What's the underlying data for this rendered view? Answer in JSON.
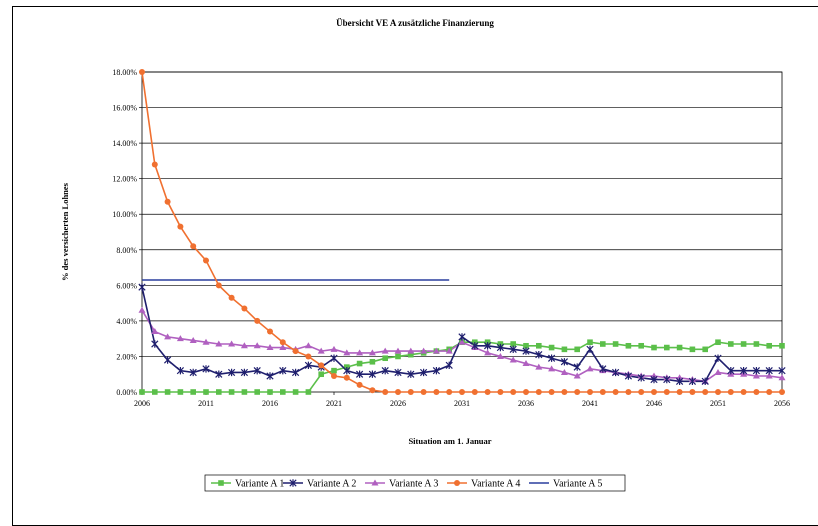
{
  "chart_data": {
    "type": "line",
    "title": "Übersicht VE A zusätzliche Finanzierung",
    "xlabel": "Situation am 1. Januar",
    "ylabel": "% des versicherten Lohnes",
    "xlim": [
      2006,
      2056
    ],
    "ylim": [
      0,
      18
    ],
    "x_ticks": [
      "2006",
      "2011",
      "2016",
      "2021",
      "2026",
      "2031",
      "2036",
      "2041",
      "2046",
      "2051",
      "2056"
    ],
    "y_ticks": [
      "0.00%",
      "2.00%",
      "4.00%",
      "6.00%",
      "8.00%",
      "10.00%",
      "12.00%",
      "14.00%",
      "16.00%",
      "18.00%"
    ],
    "grid": "horizontal",
    "legend_position": "bottom",
    "colors": {
      "Variante A 1": "#5bbf4a",
      "Variante A 2": "#1f1f6e",
      "Variante A 3": "#b060c0",
      "Variante A 4": "#f07030",
      "Variante A 5": "#2a3f9e"
    },
    "series": [
      {
        "name": "Variante A 1",
        "marker": "square",
        "x": [
          2006,
          2007,
          2008,
          2009,
          2010,
          2011,
          2012,
          2013,
          2014,
          2015,
          2016,
          2017,
          2018,
          2019,
          2020,
          2021,
          2022,
          2023,
          2024,
          2025,
          2026,
          2027,
          2028,
          2029,
          2030,
          2031,
          2032,
          2033,
          2034,
          2035,
          2036,
          2037,
          2038,
          2039,
          2040,
          2041,
          2042,
          2043,
          2044,
          2045,
          2046,
          2047,
          2048,
          2049,
          2050,
          2051,
          2052,
          2053,
          2054,
          2055,
          2056
        ],
        "values": [
          0,
          0,
          0,
          0,
          0,
          0,
          0,
          0,
          0,
          0,
          0,
          0,
          0,
          0,
          1.0,
          1.2,
          1.4,
          1.6,
          1.7,
          1.9,
          2.0,
          2.1,
          2.2,
          2.3,
          2.4,
          2.8,
          2.8,
          2.8,
          2.7,
          2.7,
          2.6,
          2.6,
          2.5,
          2.4,
          2.4,
          2.8,
          2.7,
          2.7,
          2.6,
          2.6,
          2.5,
          2.5,
          2.5,
          2.4,
          2.4,
          2.8,
          2.7,
          2.7,
          2.7,
          2.6,
          2.6
        ]
      },
      {
        "name": "Variante A 2",
        "marker": "star",
        "x": [
          2006,
          2007,
          2008,
          2009,
          2010,
          2011,
          2012,
          2013,
          2014,
          2015,
          2016,
          2017,
          2018,
          2019,
          2020,
          2021,
          2022,
          2023,
          2024,
          2025,
          2026,
          2027,
          2028,
          2029,
          2030,
          2031,
          2032,
          2033,
          2034,
          2035,
          2036,
          2037,
          2038,
          2039,
          2040,
          2041,
          2042,
          2043,
          2044,
          2045,
          2046,
          2047,
          2048,
          2049,
          2050,
          2051,
          2052,
          2053,
          2054,
          2055,
          2056
        ],
        "values": [
          5.9,
          2.7,
          1.8,
          1.2,
          1.1,
          1.3,
          1.0,
          1.1,
          1.1,
          1.2,
          0.9,
          1.2,
          1.1,
          1.5,
          1.4,
          1.9,
          1.2,
          1.0,
          1.0,
          1.2,
          1.1,
          1.0,
          1.1,
          1.2,
          1.5,
          3.1,
          2.6,
          2.6,
          2.5,
          2.4,
          2.3,
          2.1,
          1.9,
          1.7,
          1.4,
          2.4,
          1.3,
          1.1,
          0.9,
          0.8,
          0.7,
          0.7,
          0.6,
          0.6,
          0.6,
          1.9,
          1.2,
          1.2,
          1.2,
          1.2,
          1.2
        ]
      },
      {
        "name": "Variante A 3",
        "marker": "triangle",
        "x": [
          2006,
          2007,
          2008,
          2009,
          2010,
          2011,
          2012,
          2013,
          2014,
          2015,
          2016,
          2017,
          2018,
          2019,
          2020,
          2021,
          2022,
          2023,
          2024,
          2025,
          2026,
          2027,
          2028,
          2029,
          2030,
          2031,
          2032,
          2033,
          2034,
          2035,
          2036,
          2037,
          2038,
          2039,
          2040,
          2041,
          2042,
          2043,
          2044,
          2045,
          2046,
          2047,
          2048,
          2049,
          2050,
          2051,
          2052,
          2053,
          2054,
          2055,
          2056
        ],
        "values": [
          4.6,
          3.4,
          3.1,
          3.0,
          2.9,
          2.8,
          2.7,
          2.7,
          2.6,
          2.6,
          2.5,
          2.5,
          2.4,
          2.6,
          2.3,
          2.4,
          2.2,
          2.2,
          2.2,
          2.3,
          2.3,
          2.3,
          2.3,
          2.3,
          2.3,
          2.8,
          2.5,
          2.2,
          2.0,
          1.8,
          1.6,
          1.4,
          1.3,
          1.1,
          0.9,
          1.3,
          1.2,
          1.1,
          1.0,
          0.9,
          0.9,
          0.8,
          0.8,
          0.7,
          0.6,
          1.1,
          1.0,
          1.0,
          0.9,
          0.9,
          0.8
        ]
      },
      {
        "name": "Variante A 4",
        "marker": "circle",
        "x": [
          2006,
          2007,
          2008,
          2009,
          2010,
          2011,
          2012,
          2013,
          2014,
          2015,
          2016,
          2017,
          2018,
          2019,
          2020,
          2021,
          2022,
          2023,
          2024,
          2025,
          2026,
          2027,
          2028,
          2029,
          2030,
          2031,
          2032,
          2033,
          2034,
          2035,
          2036,
          2037,
          2038,
          2039,
          2040,
          2041,
          2042,
          2043,
          2044,
          2045,
          2046,
          2047,
          2048,
          2049,
          2050,
          2051,
          2052,
          2053,
          2054,
          2055,
          2056
        ],
        "values": [
          18.0,
          12.8,
          10.7,
          9.3,
          8.2,
          7.4,
          6.0,
          5.3,
          4.7,
          4.0,
          3.4,
          2.8,
          2.3,
          2.0,
          1.5,
          0.9,
          0.8,
          0.4,
          0.1,
          0,
          0,
          0,
          0,
          0,
          0,
          0,
          0,
          0,
          0,
          0,
          0,
          0,
          0,
          0,
          0,
          0,
          0,
          0,
          0,
          0,
          0,
          0,
          0,
          0,
          0,
          0,
          0,
          0,
          0,
          0,
          0
        ]
      },
      {
        "name": "Variante A 5",
        "marker": "none",
        "x": [
          2006,
          2030
        ],
        "values": [
          6.3,
          6.3
        ]
      }
    ]
  }
}
